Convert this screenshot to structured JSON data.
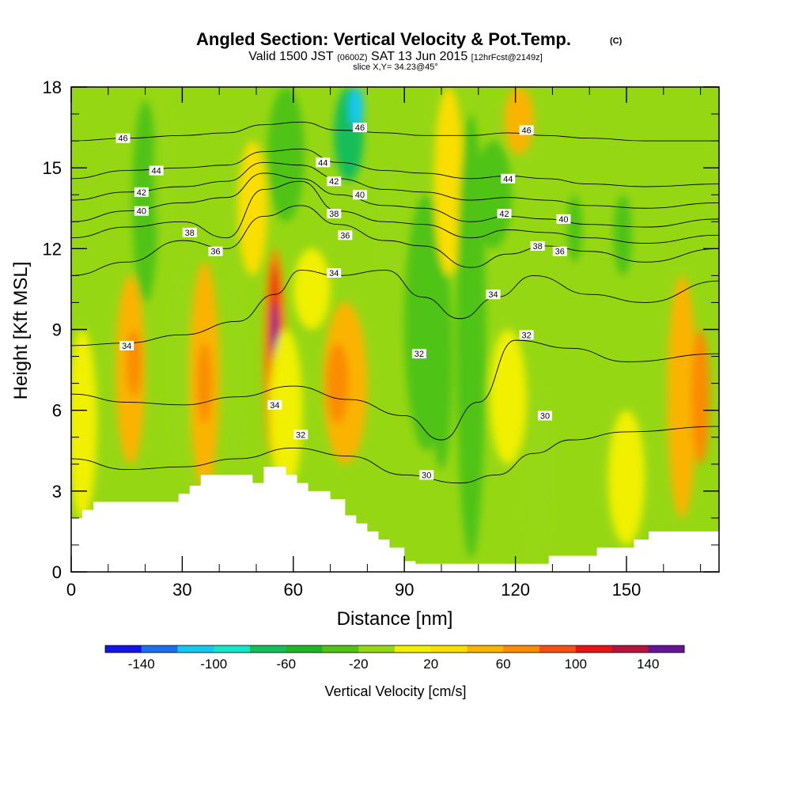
{
  "chart_data": {
    "type": "heatmap",
    "title": "Angled Section: Vertical Velocity & Pot.Temp.",
    "title_unit": "(C)",
    "subtitle_parts": [
      "Valid 1500 JST",
      "(0600Z)",
      "SAT 13 Jun 2015",
      "[12hrFcst@2149z]"
    ],
    "slice_text": "slice X,Y= 34.23@45°",
    "xlabel": "Distance [nm]",
    "ylabel": "Height [Kft MSL]",
    "xlim": [
      0,
      175
    ],
    "ylim": [
      0,
      18
    ],
    "xticks": [
      0,
      30,
      60,
      90,
      120,
      150
    ],
    "yticks": [
      0,
      3,
      6,
      9,
      12,
      15,
      18
    ],
    "colorbar": {
      "title": "Vertical Velocity [cm/s]",
      "tick_labels": [
        "-140",
        "-100",
        "-60",
        "-20",
        "20",
        "60",
        "100",
        "140"
      ],
      "tick_values": [
        -140,
        -100,
        -60,
        -20,
        20,
        60,
        100,
        140
      ],
      "boundaries": [
        -160,
        -140,
        -120,
        -100,
        -80,
        -60,
        -40,
        -20,
        0,
        20,
        40,
        60,
        80,
        100,
        120,
        140,
        160
      ],
      "colors": [
        "#1414e6",
        "#1e6ef0",
        "#14c8f0",
        "#14e6c8",
        "#14be5a",
        "#20b428",
        "#50c314",
        "#96d714",
        "#f0f000",
        "#fade00",
        "#fab400",
        "#fa8c00",
        "#f55014",
        "#e61414",
        "#b4143c",
        "#641496"
      ]
    },
    "vertical_velocity_columns": [
      {
        "x": 3,
        "w": 8,
        "y0": 2,
        "y1": 9,
        "value": 15
      },
      {
        "x": 16,
        "w": 8,
        "y0": 4,
        "y1": 11,
        "value": 45
      },
      {
        "x": 17,
        "w": 4,
        "y0": 6.5,
        "y1": 9,
        "value": 65
      },
      {
        "x": 20,
        "w": 7,
        "y0": 10,
        "y1": 17.5,
        "value": -30
      },
      {
        "x": 25,
        "w": 5,
        "y0": 12,
        "y1": 17.8,
        "value": -10
      },
      {
        "x": 29,
        "w": 6,
        "y0": 4,
        "y1": 11,
        "value": -15
      },
      {
        "x": 36,
        "w": 8,
        "y0": 3,
        "y1": 11.5,
        "value": 45
      },
      {
        "x": 36,
        "w": 4,
        "y0": 5.5,
        "y1": 8.5,
        "value": 65
      },
      {
        "x": 44,
        "w": 6,
        "y0": 4,
        "y1": 11,
        "value": -20
      },
      {
        "x": 49,
        "w": 8,
        "y0": 11,
        "y1": 16,
        "value": 25
      },
      {
        "x": 55,
        "w": 6,
        "y0": 4,
        "y1": 12,
        "value": 70
      },
      {
        "x": 55,
        "w": 3,
        "y0": 5.5,
        "y1": 11.5,
        "value": 110
      },
      {
        "x": 55,
        "w": 1.6,
        "y0": 7.5,
        "y1": 10,
        "value": 145
      },
      {
        "x": 58,
        "w": 10,
        "y0": 13,
        "y1": 18,
        "value": -30
      },
      {
        "x": 58,
        "w": 9,
        "y0": 3,
        "y1": 9,
        "value": 15
      },
      {
        "x": 65,
        "w": 10,
        "y0": 9,
        "y1": 12,
        "value": 15
      },
      {
        "x": 74,
        "w": 12,
        "y0": 4,
        "y1": 10,
        "value": 45
      },
      {
        "x": 72,
        "w": 6,
        "y0": 5.5,
        "y1": 8.5,
        "value": 65
      },
      {
        "x": 75,
        "w": 8,
        "y0": 14.5,
        "y1": 18,
        "value": -70
      },
      {
        "x": 77,
        "w": 4,
        "y0": 16.5,
        "y1": 18,
        "value": -110
      },
      {
        "x": 86,
        "w": 8,
        "y0": 11,
        "y1": 15,
        "value": -10
      },
      {
        "x": 96,
        "w": 12,
        "y0": 4.5,
        "y1": 14,
        "value": -30
      },
      {
        "x": 100,
        "w": 6,
        "y0": 3.8,
        "y1": 12,
        "value": -30
      },
      {
        "x": 102,
        "w": 8,
        "y0": 11,
        "y1": 18,
        "value": 25
      },
      {
        "x": 108,
        "w": 8,
        "y0": 0.5,
        "y1": 17,
        "value": -25
      },
      {
        "x": 114,
        "w": 10,
        "y0": 12,
        "y1": 16,
        "value": -30
      },
      {
        "x": 118,
        "w": 10,
        "y0": 4,
        "y1": 9,
        "value": 10
      },
      {
        "x": 121,
        "w": 8,
        "y0": 15.5,
        "y1": 18,
        "value": 45
      },
      {
        "x": 126,
        "w": 8,
        "y0": 0.5,
        "y1": 7,
        "value": -20
      },
      {
        "x": 136,
        "w": 4,
        "y0": 11.5,
        "y1": 14,
        "value": -30
      },
      {
        "x": 149,
        "w": 5,
        "y0": 11,
        "y1": 14,
        "value": -30
      },
      {
        "x": 150,
        "w": 10,
        "y0": 1,
        "y1": 6,
        "value": 10
      },
      {
        "x": 165,
        "w": 8,
        "y0": 2,
        "y1": 11,
        "value": 45
      },
      {
        "x": 170,
        "w": 5,
        "y0": 4,
        "y1": 9,
        "value": 65
      }
    ],
    "terrain": [
      [
        0,
        2.0
      ],
      [
        3,
        2.0
      ],
      [
        3,
        2.3
      ],
      [
        6,
        2.3
      ],
      [
        6,
        2.6
      ],
      [
        29,
        2.6
      ],
      [
        29,
        2.9
      ],
      [
        32,
        2.9
      ],
      [
        32,
        3.2
      ],
      [
        35,
        3.2
      ],
      [
        35,
        3.6
      ],
      [
        49,
        3.6
      ],
      [
        49,
        3.3
      ],
      [
        52,
        3.3
      ],
      [
        52,
        3.9
      ],
      [
        58,
        3.9
      ],
      [
        58,
        3.6
      ],
      [
        61,
        3.6
      ],
      [
        61,
        3.3
      ],
      [
        64,
        3.3
      ],
      [
        64,
        3.0
      ],
      [
        70,
        3.0
      ],
      [
        70,
        2.7
      ],
      [
        74,
        2.7
      ],
      [
        74,
        2.1
      ],
      [
        77,
        2.1
      ],
      [
        77,
        1.8
      ],
      [
        80,
        1.8
      ],
      [
        80,
        1.5
      ],
      [
        83,
        1.5
      ],
      [
        83,
        1.2
      ],
      [
        86,
        1.2
      ],
      [
        86,
        0.9
      ],
      [
        90,
        0.9
      ],
      [
        90,
        0.4
      ],
      [
        93,
        0.4
      ],
      [
        93,
        0.3
      ],
      [
        129,
        0.3
      ],
      [
        129,
        0.6
      ],
      [
        142,
        0.6
      ],
      [
        142,
        0.9
      ],
      [
        152,
        0.9
      ],
      [
        152,
        1.2
      ],
      [
        156,
        1.2
      ],
      [
        156,
        1.5
      ],
      [
        175,
        1.5
      ]
    ],
    "theta_contours": [
      {
        "value": 30,
        "points": [
          [
            0,
            4.2
          ],
          [
            15,
            3.8
          ],
          [
            30,
            3.9
          ],
          [
            45,
            4.2
          ],
          [
            60,
            4.6
          ],
          [
            75,
            4.3
          ],
          [
            90,
            3.6
          ],
          [
            105,
            3.3
          ],
          [
            115,
            3.6
          ],
          [
            125,
            4.4
          ],
          [
            135,
            4.9
          ],
          [
            150,
            5.2
          ],
          [
            175,
            5.4
          ]
        ]
      },
      {
        "value": 32,
        "points": [
          [
            0,
            6.6
          ],
          [
            15,
            6.3
          ],
          [
            30,
            6.2
          ],
          [
            45,
            6.5
          ],
          [
            60,
            6.9
          ],
          [
            75,
            6.4
          ],
          [
            90,
            5.8
          ],
          [
            100,
            4.9
          ],
          [
            110,
            6.3
          ],
          [
            120,
            8.6
          ],
          [
            135,
            8.3
          ],
          [
            150,
            7.8
          ],
          [
            175,
            8.1
          ]
        ]
      },
      {
        "value": 34,
        "points": [
          [
            0,
            8.4
          ],
          [
            15,
            8.5
          ],
          [
            30,
            8.8
          ],
          [
            45,
            9.3
          ],
          [
            55,
            10.3
          ],
          [
            62,
            11.2
          ],
          [
            72,
            11.0
          ],
          [
            85,
            11.2
          ],
          [
            95,
            10.2
          ],
          [
            105,
            9.4
          ],
          [
            115,
            10.2
          ],
          [
            125,
            11.0
          ],
          [
            140,
            10.3
          ],
          [
            155,
            10.0
          ],
          [
            175,
            10.8
          ]
        ]
      },
      {
        "value": 36,
        "points": [
          [
            0,
            11.0
          ],
          [
            15,
            11.5
          ],
          [
            30,
            12.3
          ],
          [
            42,
            12.0
          ],
          [
            52,
            13.2
          ],
          [
            62,
            13.6
          ],
          [
            72,
            12.9
          ],
          [
            85,
            12.3
          ],
          [
            95,
            12.1
          ],
          [
            108,
            11.3
          ],
          [
            118,
            11.8
          ],
          [
            128,
            12.1
          ],
          [
            140,
            11.9
          ],
          [
            155,
            11.5
          ],
          [
            175,
            12.0
          ]
        ]
      },
      {
        "value": 38,
        "points": [
          [
            0,
            12.4
          ],
          [
            15,
            12.8
          ],
          [
            30,
            13.0
          ],
          [
            42,
            12.4
          ],
          [
            52,
            14.2
          ],
          [
            62,
            14.5
          ],
          [
            72,
            13.4
          ],
          [
            85,
            13.0
          ],
          [
            95,
            12.9
          ],
          [
            108,
            12.4
          ],
          [
            118,
            12.7
          ],
          [
            128,
            12.6
          ],
          [
            140,
            12.4
          ],
          [
            155,
            12.2
          ],
          [
            175,
            12.5
          ]
        ]
      },
      {
        "value": 40,
        "points": [
          [
            0,
            13.0
          ],
          [
            15,
            13.4
          ],
          [
            30,
            13.7
          ],
          [
            42,
            13.9
          ],
          [
            52,
            14.8
          ],
          [
            62,
            14.6
          ],
          [
            72,
            14.0
          ],
          [
            85,
            13.6
          ],
          [
            95,
            13.5
          ],
          [
            108,
            13.0
          ],
          [
            118,
            13.2
          ],
          [
            128,
            13.1
          ],
          [
            140,
            12.9
          ],
          [
            155,
            12.8
          ],
          [
            175,
            13.1
          ]
        ]
      },
      {
        "value": 42,
        "points": [
          [
            0,
            13.8
          ],
          [
            15,
            14.1
          ],
          [
            30,
            14.3
          ],
          [
            42,
            14.5
          ],
          [
            52,
            15.2
          ],
          [
            62,
            15.1
          ],
          [
            72,
            14.6
          ],
          [
            85,
            14.2
          ],
          [
            95,
            14.1
          ],
          [
            108,
            13.8
          ],
          [
            118,
            13.9
          ],
          [
            128,
            13.8
          ],
          [
            140,
            13.6
          ],
          [
            155,
            13.5
          ],
          [
            175,
            13.7
          ]
        ]
      },
      {
        "value": 44,
        "points": [
          [
            0,
            14.6
          ],
          [
            15,
            14.9
          ],
          [
            30,
            15.0
          ],
          [
            42,
            15.1
          ],
          [
            52,
            15.6
          ],
          [
            62,
            15.7
          ],
          [
            72,
            15.2
          ],
          [
            85,
            14.9
          ],
          [
            95,
            14.8
          ],
          [
            108,
            14.6
          ],
          [
            118,
            14.7
          ],
          [
            128,
            14.6
          ],
          [
            140,
            14.4
          ],
          [
            155,
            14.3
          ],
          [
            175,
            14.4
          ]
        ]
      },
      {
        "value": 46,
        "points": [
          [
            0,
            16.0
          ],
          [
            15,
            16.1
          ],
          [
            30,
            16.2
          ],
          [
            42,
            16.3
          ],
          [
            52,
            16.6
          ],
          [
            62,
            16.7
          ],
          [
            72,
            16.4
          ],
          [
            85,
            16.3
          ],
          [
            95,
            16.2
          ],
          [
            108,
            16.2
          ],
          [
            118,
            16.3
          ],
          [
            128,
            16.2
          ],
          [
            140,
            16.1
          ],
          [
            155,
            16.0
          ],
          [
            175,
            16.0
          ]
        ]
      }
    ],
    "theta_labels": [
      {
        "text": "46",
        "x": 14,
        "y": 16.1
      },
      {
        "text": "44",
        "x": 23,
        "y": 14.9
      },
      {
        "text": "42",
        "x": 19,
        "y": 14.1
      },
      {
        "text": "40",
        "x": 19,
        "y": 13.4
      },
      {
        "text": "38",
        "x": 32,
        "y": 12.6
      },
      {
        "text": "36",
        "x": 39,
        "y": 11.9
      },
      {
        "text": "34",
        "x": 15,
        "y": 8.4
      },
      {
        "text": "34",
        "x": 55,
        "y": 6.2
      },
      {
        "text": "32",
        "x": 62,
        "y": 5.1
      },
      {
        "text": "46",
        "x": 78,
        "y": 16.5
      },
      {
        "text": "44",
        "x": 68,
        "y": 15.2
      },
      {
        "text": "42",
        "x": 71,
        "y": 14.5
      },
      {
        "text": "40",
        "x": 78,
        "y": 14.0
      },
      {
        "text": "38",
        "x": 71,
        "y": 13.3
      },
      {
        "text": "36",
        "x": 74,
        "y": 12.5
      },
      {
        "text": "34",
        "x": 71,
        "y": 11.1
      },
      {
        "text": "32",
        "x": 94,
        "y": 8.1
      },
      {
        "text": "30",
        "x": 96,
        "y": 3.6
      },
      {
        "text": "46",
        "x": 123,
        "y": 16.4
      },
      {
        "text": "44",
        "x": 118,
        "y": 14.6
      },
      {
        "text": "42",
        "x": 117,
        "y": 13.3
      },
      {
        "text": "40",
        "x": 133,
        "y": 13.1
      },
      {
        "text": "38",
        "x": 126,
        "y": 12.1
      },
      {
        "text": "36",
        "x": 132,
        "y": 11.9
      },
      {
        "text": "34",
        "x": 114,
        "y": 10.3
      },
      {
        "text": "32",
        "x": 123,
        "y": 8.8
      },
      {
        "text": "30",
        "x": 128,
        "y": 5.8
      }
    ]
  }
}
